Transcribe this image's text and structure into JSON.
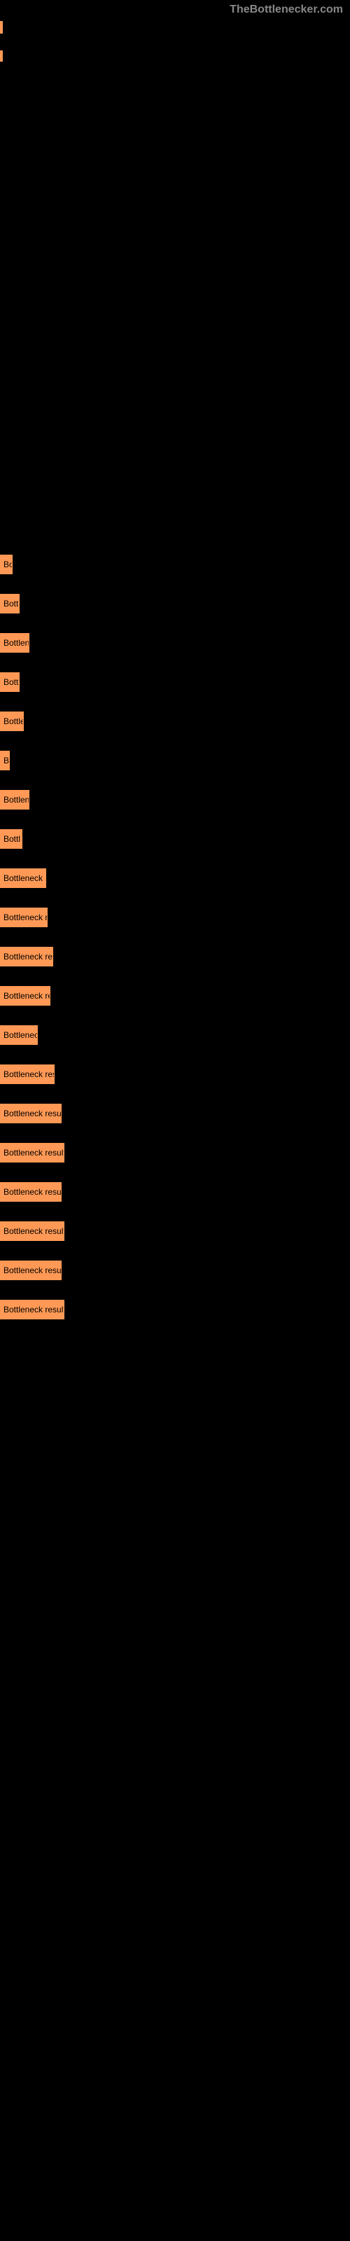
{
  "header": {
    "site_name": "TheBottlenecker.com"
  },
  "markers": {
    "marker1_height": 18,
    "marker2_height": 16
  },
  "bars": [
    {
      "label": "Bo",
      "width": 18
    },
    {
      "label": "Bott",
      "width": 28
    },
    {
      "label": "Bottlene",
      "width": 42
    },
    {
      "label": "Bott",
      "width": 28
    },
    {
      "label": "Bottle",
      "width": 34
    },
    {
      "label": "B",
      "width": 14
    },
    {
      "label": "Bottlene",
      "width": 42
    },
    {
      "label": "Bottl",
      "width": 32
    },
    {
      "label": "Bottleneck re",
      "width": 66
    },
    {
      "label": "Bottleneck re",
      "width": 68
    },
    {
      "label": "Bottleneck resu",
      "width": 76
    },
    {
      "label": "Bottleneck res",
      "width": 72
    },
    {
      "label": "Bottleneck",
      "width": 54
    },
    {
      "label": "Bottleneck resu",
      "width": 78
    },
    {
      "label": "Bottleneck result",
      "width": 88
    },
    {
      "label": "Bottleneck result",
      "width": 92
    },
    {
      "label": "Bottleneck result",
      "width": 88
    },
    {
      "label": "Bottleneck result",
      "width": 92
    },
    {
      "label": "Bottleneck result",
      "width": 88
    },
    {
      "label": "Bottleneck result",
      "width": 92
    }
  ],
  "colors": {
    "background": "#000000",
    "bar_fill": "#ff9955",
    "bar_text": "#000000",
    "header_text": "#888888"
  }
}
